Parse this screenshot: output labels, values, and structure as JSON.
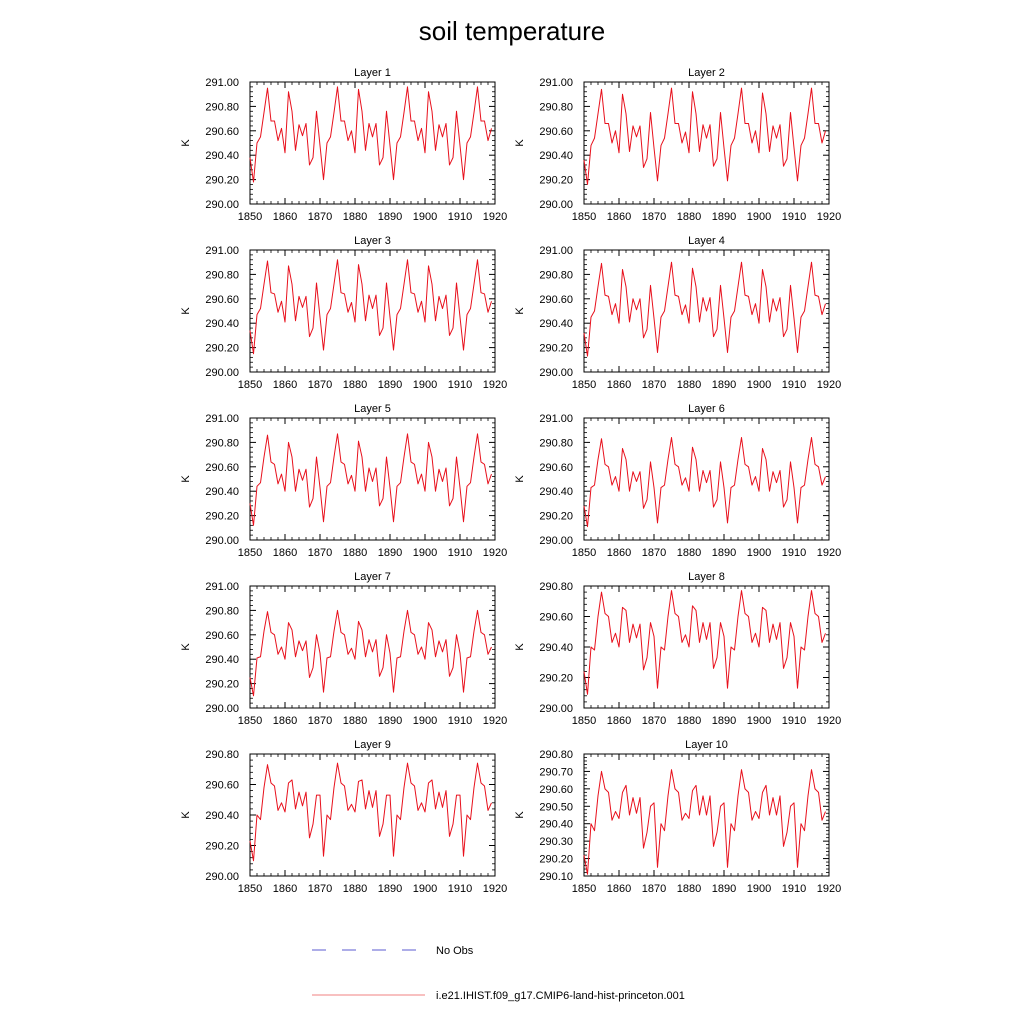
{
  "title": "soil temperature",
  "colors": {
    "model": "#e8101c",
    "obs": "#5b5bd0",
    "axis": "#000000"
  },
  "legend": {
    "obs_label": "No Obs",
    "model_label": "i.e21.IHIST.f09_g17.CMIP6-land-hist-princeton.001"
  },
  "chart_data": [
    {
      "type": "line",
      "title": "Layer 1",
      "ylabel": "K",
      "xlim": [
        1850,
        1920
      ],
      "ylim": [
        290.0,
        291.0
      ],
      "xticks": [
        "1850",
        "1860",
        "1870",
        "1880",
        "1890",
        "1900",
        "1910",
        "1920"
      ],
      "yticks": [
        "290.00",
        "290.20",
        "290.40",
        "290.60",
        "290.80",
        "291.00"
      ],
      "x_start": 1850,
      "series": [
        {
          "values": [
            290.38,
            290.18,
            290.5,
            290.55,
            290.75,
            290.95,
            290.68,
            290.68,
            290.52,
            290.62,
            290.42,
            290.92,
            290.76,
            290.44,
            290.65,
            290.56,
            290.66,
            290.32,
            290.38,
            290.76,
            290.48,
            290.2,
            290.5,
            290.55,
            290.75,
            290.96,
            290.68,
            290.68,
            290.52,
            290.6,
            290.42,
            290.94,
            290.76,
            290.44,
            290.66,
            290.55,
            290.66,
            290.32,
            290.38,
            290.76,
            290.48,
            290.2,
            290.5,
            290.55,
            290.75,
            290.96,
            290.68,
            290.68,
            290.52,
            290.62,
            290.42,
            290.92,
            290.76,
            290.44,
            290.65,
            290.55,
            290.66,
            290.32,
            290.38,
            290.76,
            290.48,
            290.2,
            290.5,
            290.55,
            290.75,
            290.96,
            290.68,
            290.68,
            290.52,
            290.62
          ]
        }
      ]
    },
    {
      "type": "line",
      "title": "Layer 2",
      "ylabel": "K",
      "xlim": [
        1850,
        1920
      ],
      "ylim": [
        290.0,
        291.0
      ],
      "xticks": [
        "1850",
        "1860",
        "1870",
        "1880",
        "1890",
        "1900",
        "1910",
        "1920"
      ],
      "yticks": [
        "290.00",
        "290.20",
        "290.40",
        "290.60",
        "290.80",
        "291.00"
      ],
      "x_start": 1850,
      "series": [
        {
          "values": [
            290.36,
            290.16,
            290.48,
            290.54,
            290.74,
            290.94,
            290.66,
            290.66,
            290.5,
            290.6,
            290.42,
            290.9,
            290.74,
            290.43,
            290.64,
            290.55,
            290.64,
            290.3,
            290.37,
            290.75,
            290.46,
            290.19,
            290.48,
            290.54,
            290.74,
            290.95,
            290.66,
            290.66,
            290.5,
            290.59,
            290.42,
            290.92,
            290.74,
            290.43,
            290.65,
            290.54,
            290.65,
            290.31,
            290.37,
            290.75,
            290.46,
            290.19,
            290.48,
            290.54,
            290.74,
            290.95,
            290.66,
            290.66,
            290.5,
            290.6,
            290.42,
            290.91,
            290.74,
            290.43,
            290.64,
            290.54,
            290.65,
            290.31,
            290.37,
            290.75,
            290.46,
            290.19,
            290.48,
            290.54,
            290.74,
            290.95,
            290.66,
            290.66,
            290.5,
            290.6
          ]
        }
      ]
    },
    {
      "type": "line",
      "title": "Layer 3",
      "ylabel": "K",
      "xlim": [
        1850,
        1920
      ],
      "ylim": [
        290.0,
        291.0
      ],
      "xticks": [
        "1850",
        "1860",
        "1870",
        "1880",
        "1890",
        "1900",
        "1910",
        "1920"
      ],
      "yticks": [
        "290.00",
        "290.20",
        "290.40",
        "290.60",
        "290.80",
        "291.00"
      ],
      "x_start": 1850,
      "series": [
        {
          "values": [
            290.34,
            290.15,
            290.47,
            290.52,
            290.72,
            290.91,
            290.65,
            290.64,
            290.49,
            290.58,
            290.41,
            290.87,
            290.72,
            290.42,
            290.62,
            290.53,
            290.62,
            290.29,
            290.36,
            290.73,
            290.45,
            290.18,
            290.47,
            290.52,
            290.72,
            290.92,
            290.65,
            290.64,
            290.49,
            290.57,
            290.41,
            290.88,
            290.72,
            290.42,
            290.63,
            290.52,
            290.63,
            290.3,
            290.36,
            290.73,
            290.45,
            290.18,
            290.47,
            290.52,
            290.72,
            290.92,
            290.65,
            290.64,
            290.49,
            290.58,
            290.41,
            290.87,
            290.72,
            290.42,
            290.62,
            290.52,
            290.63,
            290.3,
            290.36,
            290.73,
            290.45,
            290.18,
            290.47,
            290.52,
            290.72,
            290.92,
            290.65,
            290.64,
            290.49,
            290.58
          ]
        }
      ]
    },
    {
      "type": "line",
      "title": "Layer 4",
      "ylabel": "K",
      "xlim": [
        1850,
        1920
      ],
      "ylim": [
        290.0,
        291.0
      ],
      "xticks": [
        "1850",
        "1860",
        "1870",
        "1880",
        "1890",
        "1900",
        "1910",
        "1920"
      ],
      "yticks": [
        "290.00",
        "290.20",
        "290.40",
        "290.60",
        "290.80",
        "291.00"
      ],
      "x_start": 1850,
      "series": [
        {
          "values": [
            290.32,
            290.13,
            290.45,
            290.5,
            290.7,
            290.89,
            290.63,
            290.62,
            290.47,
            290.56,
            290.4,
            290.84,
            290.7,
            290.41,
            290.6,
            290.51,
            290.6,
            290.28,
            290.35,
            290.71,
            290.44,
            290.16,
            290.45,
            290.5,
            290.7,
            290.9,
            290.63,
            290.62,
            290.47,
            290.55,
            290.4,
            290.85,
            290.7,
            290.41,
            290.61,
            290.5,
            290.61,
            290.29,
            290.35,
            290.71,
            290.44,
            290.16,
            290.45,
            290.5,
            290.7,
            290.9,
            290.63,
            290.62,
            290.47,
            290.56,
            290.4,
            290.84,
            290.7,
            290.41,
            290.6,
            290.5,
            290.61,
            290.29,
            290.35,
            290.71,
            290.44,
            290.16,
            290.45,
            290.5,
            290.7,
            290.9,
            290.63,
            290.62,
            290.47,
            290.56
          ]
        }
      ]
    },
    {
      "type": "line",
      "title": "Layer 5",
      "ylabel": "K",
      "xlim": [
        1850,
        1920
      ],
      "ylim": [
        290.0,
        291.0
      ],
      "xticks": [
        "1850",
        "1860",
        "1870",
        "1880",
        "1890",
        "1900",
        "1910",
        "1920"
      ],
      "yticks": [
        "290.00",
        "290.20",
        "290.40",
        "290.60",
        "290.80",
        "291.00"
      ],
      "x_start": 1850,
      "series": [
        {
          "values": [
            290.3,
            290.12,
            290.44,
            290.47,
            290.68,
            290.86,
            290.64,
            290.62,
            290.46,
            290.54,
            290.4,
            290.8,
            290.68,
            290.4,
            290.58,
            290.49,
            290.58,
            290.27,
            290.34,
            290.68,
            290.43,
            290.15,
            290.44,
            290.47,
            290.68,
            290.87,
            290.64,
            290.62,
            290.46,
            290.53,
            290.4,
            290.81,
            290.68,
            290.4,
            290.59,
            290.48,
            290.59,
            290.28,
            290.34,
            290.68,
            290.43,
            290.15,
            290.44,
            290.47,
            290.68,
            290.87,
            290.64,
            290.62,
            290.46,
            290.54,
            290.4,
            290.8,
            290.68,
            290.4,
            290.58,
            290.48,
            290.59,
            290.28,
            290.34,
            290.68,
            290.43,
            290.15,
            290.44,
            290.47,
            290.68,
            290.87,
            290.64,
            290.62,
            290.46,
            290.54
          ]
        }
      ]
    },
    {
      "type": "line",
      "title": "Layer 6",
      "ylabel": "K",
      "xlim": [
        1850,
        1920
      ],
      "ylim": [
        290.0,
        291.0
      ],
      "xticks": [
        "1850",
        "1860",
        "1870",
        "1880",
        "1890",
        "1900",
        "1910",
        "1920"
      ],
      "yticks": [
        "290.00",
        "290.20",
        "290.40",
        "290.60",
        "290.80",
        "291.00"
      ],
      "x_start": 1850,
      "series": [
        {
          "values": [
            290.28,
            290.11,
            290.43,
            290.45,
            290.66,
            290.83,
            290.62,
            290.6,
            290.45,
            290.52,
            290.4,
            290.75,
            290.66,
            290.4,
            290.56,
            290.48,
            290.56,
            290.26,
            290.33,
            290.64,
            290.43,
            290.14,
            290.43,
            290.45,
            290.66,
            290.84,
            290.62,
            290.6,
            290.45,
            290.51,
            290.4,
            290.76,
            290.66,
            290.4,
            290.57,
            290.47,
            290.57,
            290.27,
            290.33,
            290.64,
            290.43,
            290.14,
            290.43,
            290.45,
            290.66,
            290.84,
            290.62,
            290.6,
            290.45,
            290.52,
            290.4,
            290.75,
            290.66,
            290.4,
            290.56,
            290.47,
            290.57,
            290.27,
            290.33,
            290.64,
            290.43,
            290.14,
            290.43,
            290.45,
            290.66,
            290.84,
            290.62,
            290.6,
            290.45,
            290.52
          ]
        }
      ]
    },
    {
      "type": "line",
      "title": "Layer 7",
      "ylabel": "K",
      "xlim": [
        1850,
        1920
      ],
      "ylim": [
        290.0,
        291.0
      ],
      "xticks": [
        "1850",
        "1860",
        "1870",
        "1880",
        "1890",
        "1900",
        "1910",
        "1920"
      ],
      "yticks": [
        "290.00",
        "290.20",
        "290.40",
        "290.60",
        "290.80",
        "291.00"
      ],
      "x_start": 1850,
      "series": [
        {
          "values": [
            290.25,
            290.1,
            290.41,
            290.42,
            290.63,
            290.79,
            290.62,
            290.6,
            290.44,
            290.5,
            290.4,
            290.7,
            290.64,
            290.42,
            290.55,
            290.47,
            290.55,
            290.25,
            290.33,
            290.6,
            290.45,
            290.13,
            290.41,
            290.42,
            290.63,
            290.8,
            290.62,
            290.6,
            290.44,
            290.49,
            290.4,
            290.71,
            290.64,
            290.42,
            290.56,
            290.46,
            290.56,
            290.26,
            290.33,
            290.6,
            290.45,
            290.13,
            290.41,
            290.42,
            290.63,
            290.8,
            290.62,
            290.6,
            290.44,
            290.5,
            290.4,
            290.7,
            290.64,
            290.42,
            290.55,
            290.46,
            290.56,
            290.26,
            290.33,
            290.6,
            290.45,
            290.13,
            290.41,
            290.42,
            290.63,
            290.8,
            290.62,
            290.6,
            290.44,
            290.5
          ]
        }
      ]
    },
    {
      "type": "line",
      "title": "Layer 8",
      "ylabel": "K",
      "xlim": [
        1850,
        1920
      ],
      "ylim": [
        290.0,
        290.8
      ],
      "xticks": [
        "1850",
        "1860",
        "1870",
        "1880",
        "1890",
        "1900",
        "1910",
        "1920"
      ],
      "yticks": [
        "290.00",
        "290.20",
        "290.40",
        "290.60",
        "290.80"
      ],
      "x_start": 1850,
      "series": [
        {
          "values": [
            290.24,
            290.09,
            290.4,
            290.38,
            290.6,
            290.76,
            290.62,
            290.6,
            290.43,
            290.49,
            290.4,
            290.66,
            290.64,
            290.43,
            290.55,
            290.46,
            290.55,
            290.25,
            290.33,
            290.56,
            290.47,
            290.13,
            290.4,
            290.38,
            290.6,
            290.77,
            290.62,
            290.6,
            290.43,
            290.48,
            290.4,
            290.67,
            290.64,
            290.43,
            290.56,
            290.45,
            290.56,
            290.26,
            290.33,
            290.56,
            290.47,
            290.13,
            290.4,
            290.38,
            290.6,
            290.77,
            290.62,
            290.6,
            290.43,
            290.49,
            290.4,
            290.66,
            290.64,
            290.43,
            290.55,
            290.45,
            290.56,
            290.26,
            290.33,
            290.56,
            290.47,
            290.13,
            290.4,
            290.38,
            290.6,
            290.77,
            290.62,
            290.6,
            290.43,
            290.49
          ]
        }
      ]
    },
    {
      "type": "line",
      "title": "Layer 9",
      "ylabel": "K",
      "xlim": [
        1850,
        1920
      ],
      "ylim": [
        290.0,
        290.8
      ],
      "xticks": [
        "1850",
        "1860",
        "1870",
        "1880",
        "1890",
        "1900",
        "1910",
        "1920"
      ],
      "yticks": [
        "290.00",
        "290.20",
        "290.40",
        "290.60",
        "290.80"
      ],
      "x_start": 1850,
      "series": [
        {
          "values": [
            290.23,
            290.1,
            290.4,
            290.37,
            290.58,
            290.73,
            290.61,
            290.59,
            290.43,
            290.48,
            290.42,
            290.61,
            290.63,
            290.44,
            290.55,
            290.46,
            290.55,
            290.25,
            290.34,
            290.53,
            290.53,
            290.13,
            290.4,
            290.37,
            290.58,
            290.74,
            290.61,
            290.59,
            290.43,
            290.47,
            290.42,
            290.62,
            290.63,
            290.44,
            290.56,
            290.45,
            290.56,
            290.26,
            290.34,
            290.53,
            290.53,
            290.13,
            290.4,
            290.37,
            290.58,
            290.74,
            290.61,
            290.59,
            290.43,
            290.48,
            290.42,
            290.61,
            290.63,
            290.44,
            290.55,
            290.45,
            290.56,
            290.26,
            290.34,
            290.53,
            290.53,
            290.13,
            290.4,
            290.37,
            290.58,
            290.74,
            290.61,
            290.59,
            290.43,
            290.48
          ]
        }
      ]
    },
    {
      "type": "line",
      "title": "Layer 10",
      "ylabel": "K",
      "xlim": [
        1850,
        1920
      ],
      "ylim": [
        290.1,
        290.8
      ],
      "xticks": [
        "1850",
        "1860",
        "1870",
        "1880",
        "1890",
        "1900",
        "1910",
        "1920"
      ],
      "yticks": [
        "290.10",
        "290.20",
        "290.30",
        "290.40",
        "290.50",
        "290.60",
        "290.70",
        "290.80"
      ],
      "x_start": 1850,
      "series": [
        {
          "values": [
            290.22,
            290.11,
            290.4,
            290.36,
            290.56,
            290.7,
            290.6,
            290.58,
            290.42,
            290.47,
            290.43,
            290.58,
            290.62,
            290.45,
            290.55,
            290.46,
            290.55,
            290.26,
            290.35,
            290.5,
            290.52,
            290.15,
            290.4,
            290.36,
            290.56,
            290.71,
            290.6,
            290.58,
            290.42,
            290.46,
            290.43,
            290.59,
            290.62,
            290.45,
            290.56,
            290.45,
            290.56,
            290.27,
            290.35,
            290.5,
            290.52,
            290.15,
            290.4,
            290.36,
            290.56,
            290.71,
            290.6,
            290.58,
            290.42,
            290.47,
            290.43,
            290.58,
            290.62,
            290.45,
            290.55,
            290.45,
            290.56,
            290.27,
            290.35,
            290.5,
            290.52,
            290.15,
            290.4,
            290.36,
            290.56,
            290.71,
            290.6,
            290.58,
            290.42,
            290.47
          ]
        }
      ]
    }
  ]
}
